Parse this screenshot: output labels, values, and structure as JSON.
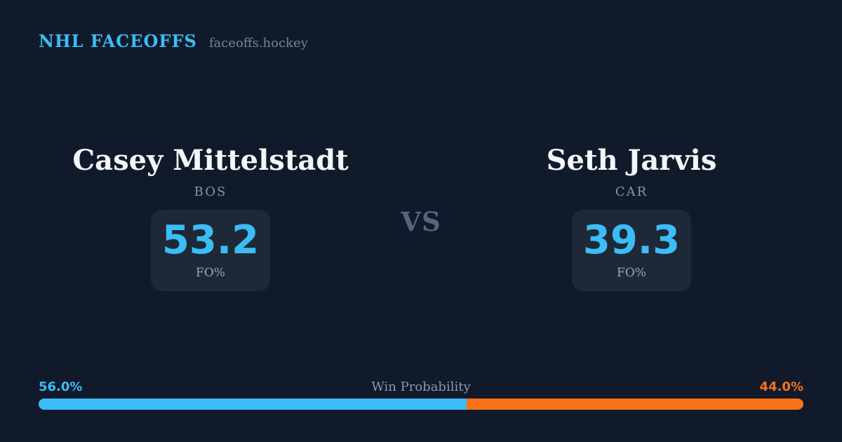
{
  "header": {
    "brand": "NHL FACEOFFS",
    "site": "faceoffs.hockey"
  },
  "vs_label": "VS",
  "players": {
    "left": {
      "name": "Casey Mittelstadt",
      "team": "BOS",
      "stat_value": "53.2",
      "stat_label": "FO%"
    },
    "right": {
      "name": "Seth Jarvis",
      "team": "CAR",
      "stat_value": "39.3",
      "stat_label": "FO%"
    }
  },
  "win_probability": {
    "title": "Win Probability",
    "left_pct": 56.0,
    "right_pct": 44.0,
    "left_label": "56.0%",
    "right_label": "44.0%"
  },
  "colors": {
    "background": "#111a2b",
    "card": "#1e2836",
    "accent_blue": "#3bbdf6",
    "accent_orange": "#f97316",
    "text_primary": "#f4f6fa",
    "text_muted": "#8596ac",
    "vs": "#55657e"
  }
}
